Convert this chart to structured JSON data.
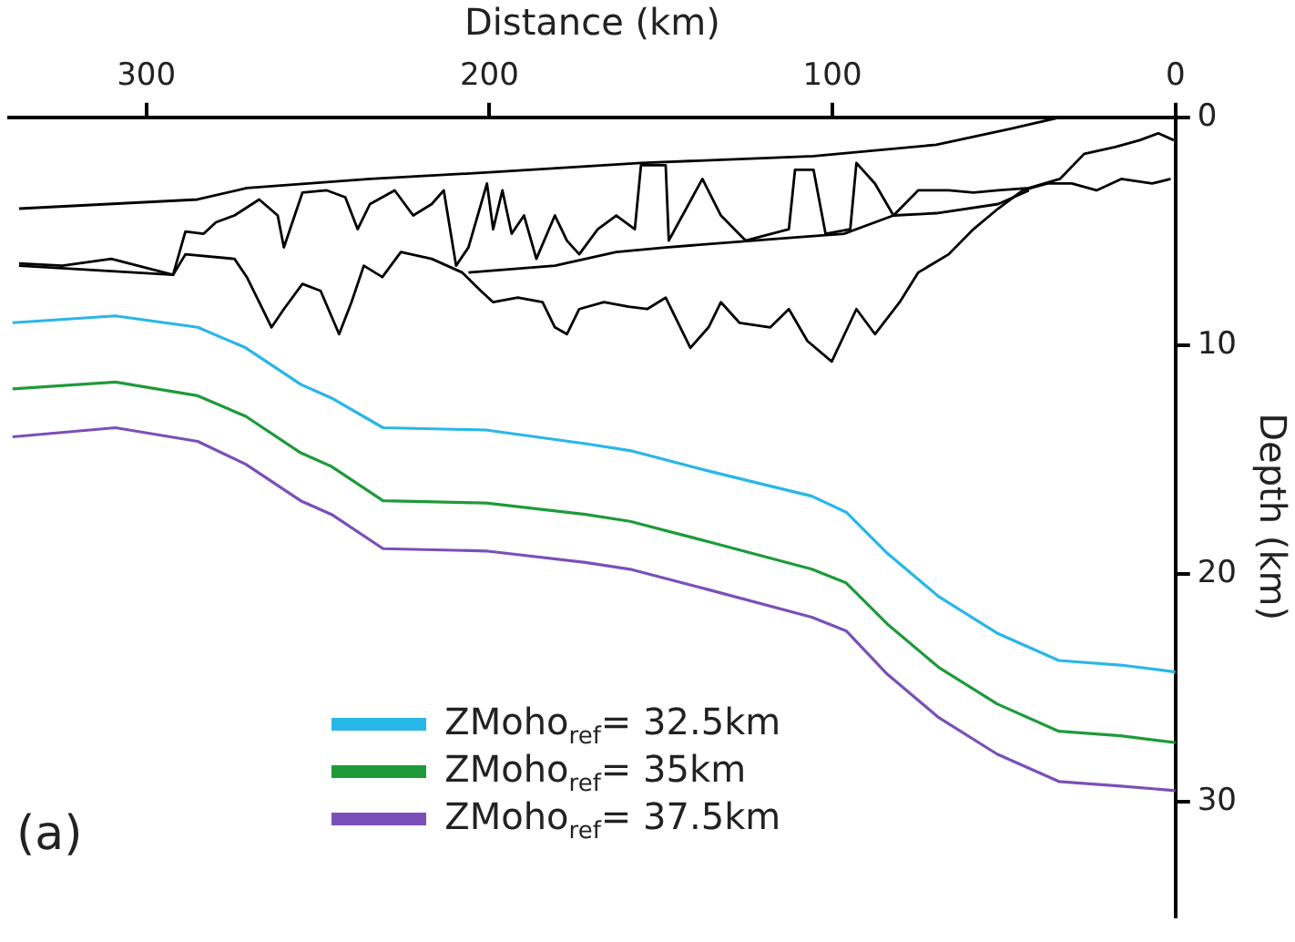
{
  "chart_data": {
    "type": "line",
    "xlabel": "Distance (km)",
    "ylabel": "Depth (km)",
    "xlim": [
      340,
      0
    ],
    "xticks": [
      300,
      200,
      100,
      0
    ],
    "ylim": [
      35,
      0
    ],
    "yticks": [
      0,
      10,
      20,
      30
    ],
    "grid": false,
    "legend": "bottom",
    "marker": "none",
    "line_style": "solid",
    "annotations": [
      "(a)"
    ],
    "series": [
      {
        "color": "#000000",
        "x": [
          337.1,
          285.1,
          270.7,
          234.8,
          198.9,
          155.8,
          105.5,
          69.7,
          48.1,
          33.7
        ],
        "values": [
          4.0,
          3.6,
          3.1,
          2.7,
          2.4,
          2.0,
          1.7,
          1.2,
          0.5,
          0.0
        ]
      },
      {
        "color": "#000000",
        "x": [
          337.1,
          324.5,
          310.2,
          292.2,
          288.6,
          283.3,
          279.7,
          274.3,
          267.1,
          261.7,
          259.9,
          258.1,
          254.5,
          247.4,
          242.0,
          238.4,
          234.8,
          227.6,
          222.2,
          216.8,
          213.3,
          209.7,
          206.1,
          200.7,
          198.9,
          196.2,
          193.5,
          189.9,
          186.3,
          180.9,
          177.4,
          173.8,
          168.4,
          163.0,
          157.6,
          155.8,
          148.6,
          147.7,
          137.9,
          132.5,
          125.3,
          112.7,
          110.9,
          105.5,
          102.0,
          94.8,
          93.0,
          87.6,
          82.2,
          75.0,
          66.1,
          58.9,
          51.7,
          42.7,
          33.7,
          26.6,
          17.6,
          10.4,
          5.0,
          0.5
        ],
        "values": [
          6.4,
          6.5,
          6.2,
          6.9,
          5.0,
          5.1,
          4.6,
          4.3,
          3.6,
          4.3,
          5.7,
          4.9,
          3.3,
          3.2,
          3.5,
          4.9,
          3.8,
          3.2,
          4.3,
          3.8,
          3.2,
          6.5,
          5.7,
          2.9,
          4.9,
          3.2,
          5.1,
          4.3,
          6.2,
          4.3,
          5.4,
          6.0,
          4.9,
          4.3,
          4.9,
          2.1,
          2.1,
          5.4,
          2.7,
          4.3,
          5.4,
          4.9,
          2.3,
          2.3,
          5.1,
          4.9,
          2.0,
          2.9,
          4.3,
          3.2,
          3.2,
          3.3,
          3.2,
          3.1,
          2.7,
          1.6,
          1.3,
          1.0,
          0.7,
          1.0
        ]
      },
      {
        "color": "#000000",
        "x": [
          337.1,
          292.2,
          288.6,
          274.3,
          270.7,
          267.1,
          263.5,
          259.9,
          254.5,
          249.2,
          243.8,
          240.2,
          236.6,
          231.2,
          225.8,
          216.8,
          207.9,
          202.5,
          198.9,
          191.7,
          184.5,
          180.9,
          177.4,
          173.8,
          166.6,
          159.4,
          154.0,
          148.6,
          141.4,
          136.1,
          132.5,
          127.1,
          118.1,
          112.7,
          107.3,
          100.2,
          93.0,
          87.6,
          80.4,
          75.0,
          66.1,
          58.9,
          51.7,
          44.5,
          37.3,
          30.2,
          23.0,
          15.8,
          6.8,
          1.4
        ],
        "values": [
          6.5,
          6.9,
          6.0,
          6.2,
          7.0,
          8.1,
          9.2,
          8.4,
          7.3,
          7.6,
          9.5,
          8.1,
          6.5,
          7.0,
          5.9,
          6.2,
          6.8,
          7.6,
          8.1,
          7.9,
          8.1,
          9.2,
          9.5,
          8.4,
          8.1,
          8.3,
          8.4,
          7.9,
          10.1,
          9.2,
          8.1,
          9.0,
          9.2,
          8.4,
          9.8,
          10.7,
          8.4,
          9.5,
          8.1,
          6.8,
          6.0,
          4.9,
          4.0,
          3.2,
          2.9,
          2.9,
          3.2,
          2.7,
          2.9,
          2.7
        ]
      },
      {
        "color": "#000000",
        "x": [
          206.1,
          180.9,
          163.0,
          148.6,
          114.5,
          96.6,
          82.2,
          69.7,
          51.7,
          42.7
        ],
        "values": [
          6.8,
          6.5,
          5.9,
          5.7,
          5.3,
          5.1,
          4.3,
          4.2,
          3.8,
          3.2
        ]
      },
      {
        "name": "ZMoho$_{ref}$= 32.5km",
        "color": "#29b6e8",
        "x": [
          339,
          309,
          285,
          271,
          255,
          246,
          231,
          201,
          172,
          159,
          136,
          106,
          96,
          84,
          69,
          52,
          34,
          16,
          0
        ],
        "values": [
          9.0,
          8.7,
          9.2,
          10.1,
          11.7,
          12.3,
          13.6,
          13.7,
          14.3,
          14.6,
          15.5,
          16.6,
          17.3,
          19.1,
          21.0,
          22.6,
          23.8,
          24.0,
          24.3
        ]
      },
      {
        "name": "ZMoho$_{ref}$= 35km",
        "color": "#1e9a3a",
        "x": [
          339,
          309,
          285,
          271,
          255,
          246,
          231,
          201,
          172,
          159,
          136,
          106,
          96,
          84,
          69,
          52,
          34,
          16,
          0
        ],
        "values": [
          11.9,
          11.6,
          12.2,
          13.1,
          14.7,
          15.3,
          16.8,
          16.9,
          17.4,
          17.7,
          18.6,
          19.8,
          20.4,
          22.2,
          24.1,
          25.7,
          26.9,
          27.1,
          27.4
        ]
      },
      {
        "name": "ZMoho$_{ref}$= 37.5km",
        "color": "#7b4fb8",
        "x": [
          339,
          309,
          285,
          271,
          255,
          246,
          231,
          201,
          172,
          159,
          136,
          106,
          96,
          84,
          69,
          52,
          34,
          16,
          0
        ],
        "values": [
          14.0,
          13.6,
          14.2,
          15.2,
          16.8,
          17.4,
          18.9,
          19.0,
          19.5,
          19.8,
          20.7,
          21.9,
          22.5,
          24.4,
          26.3,
          27.9,
          29.1,
          29.3,
          29.5
        ]
      }
    ]
  }
}
